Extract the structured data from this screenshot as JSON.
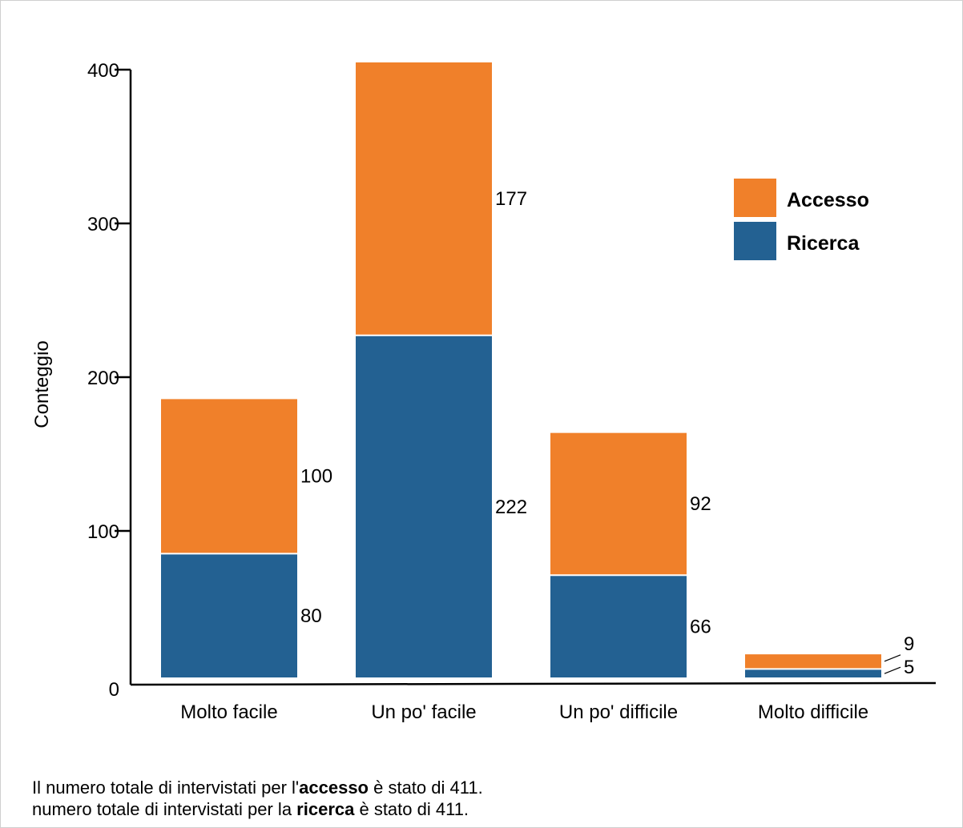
{
  "chart_data": {
    "type": "bar",
    "stacked": true,
    "categories": [
      "Molto facile",
      "Un po' facile",
      "Un po' difficile",
      "Molto difficile"
    ],
    "series": [
      {
        "name": "Ricerca",
        "values": [
          80,
          222,
          66,
          5
        ],
        "color": "#236192"
      },
      {
        "name": "Accesso",
        "values": [
          100,
          177,
          92,
          9
        ],
        "color": "#f0802a"
      }
    ],
    "title": "",
    "xlabel": "",
    "ylabel": "Conteggio",
    "ylim": [
      0,
      400
    ],
    "yticks": [
      0,
      100,
      200,
      300,
      400
    ],
    "grid": false,
    "legend": {
      "placement": "top-right",
      "entries": [
        "Accesso",
        "Ricerca"
      ]
    }
  },
  "footnote": {
    "line1": {
      "pre": "Il numero totale di intervistati per l'",
      "bold": "accesso",
      "post": " è stato di 411."
    },
    "line2": {
      "pre": "numero totale di intervistati per la ",
      "bold": "ricerca",
      "post": " è stato di 411."
    }
  }
}
